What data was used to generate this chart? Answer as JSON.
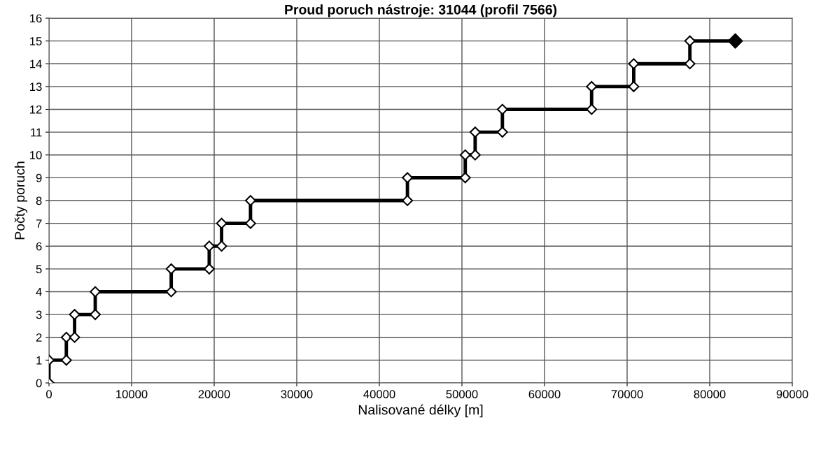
{
  "chart_data": {
    "type": "line",
    "title": "Proud poruch nástroje: 31044 (profil 7566)",
    "xlabel": "Nalisované délky [m]",
    "ylabel": "Počty poruch",
    "series": [
      {
        "color": "#000000",
        "marker": "diamond",
        "x": [
          0,
          0,
          2100,
          2100,
          3100,
          3100,
          5600,
          5600,
          14800,
          14800,
          19400,
          19400,
          20900,
          20900,
          24400,
          24400,
          43400,
          43400,
          50400,
          50400,
          51600,
          51600,
          54900,
          54900,
          65700,
          65700,
          70800,
          70800,
          77600,
          77600,
          83100
        ],
        "values": [
          0,
          1,
          1,
          2,
          2,
          3,
          3,
          4,
          4,
          5,
          5,
          6,
          6,
          7,
          7,
          8,
          8,
          9,
          9,
          10,
          10,
          11,
          11,
          12,
          12,
          13,
          13,
          14,
          14,
          15,
          15
        ]
      },
      {
        "type": "scatter",
        "color": "#000000",
        "marker": "diamond",
        "x": [
          83100
        ],
        "values": [
          15
        ]
      }
    ],
    "xlim": [
      0,
      90000
    ],
    "xticks": [
      0,
      10000,
      20000,
      30000,
      40000,
      50000,
      60000,
      70000,
      80000,
      90000
    ],
    "ylim": [
      0,
      16
    ],
    "yticks": [
      0,
      1,
      2,
      3,
      4,
      5,
      6,
      7,
      8,
      9,
      10,
      11,
      12,
      13,
      14,
      15,
      16
    ],
    "grid": true,
    "legend": false
  }
}
